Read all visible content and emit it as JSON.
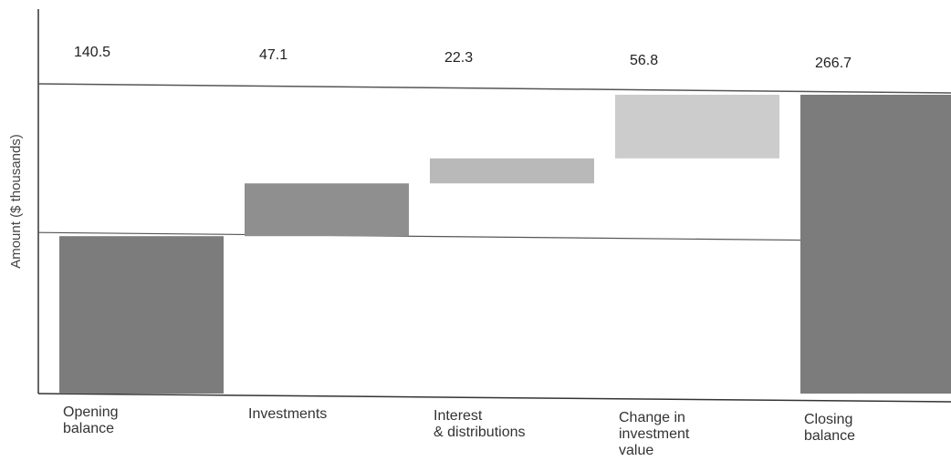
{
  "chart_data": {
    "type": "bar",
    "subtype": "waterfall",
    "title": "",
    "xlabel": "",
    "ylabel": "Amount ($ thousands)",
    "ylim": [
      0,
      290
    ],
    "grid": false,
    "reference_lines": [
      140.5,
      266.7
    ],
    "categories": [
      [
        "Opening",
        "balance"
      ],
      [
        "Investments"
      ],
      [
        "Interest",
        "& distributions"
      ],
      [
        "Change in",
        "investment",
        "value"
      ],
      [
        "Closing",
        "balance"
      ]
    ],
    "values": [
      140.5,
      47.1,
      22.3,
      56.8,
      266.7
    ],
    "value_labels": [
      "140.5",
      "47.1",
      "22.3",
      "56.8",
      "266.7"
    ],
    "bar_kind": [
      "total",
      "delta",
      "delta",
      "delta",
      "total"
    ],
    "colors": {
      "total": "#7c7c7c",
      "investments": "#8f8f8f",
      "interest": "#b9b9b9",
      "change": "#cccccc",
      "axis": "#333333",
      "refline": "#555555",
      "text": "#222222"
    },
    "bar_colors": [
      "#7c7c7c",
      "#8f8f8f",
      "#b9b9b9",
      "#cccccc",
      "#7c7c7c"
    ]
  }
}
